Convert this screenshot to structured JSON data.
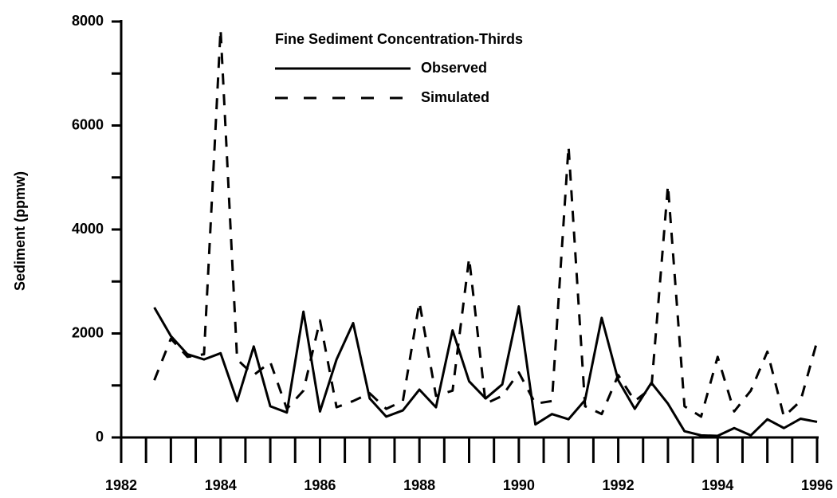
{
  "chart_data": {
    "type": "line",
    "ylabel": "Sediment (ppmw)",
    "legend_title": "Fine Sediment Concentration-Thirds",
    "x": [
      1982.667,
      1983,
      1983.333,
      1983.667,
      1984,
      1984.333,
      1984.667,
      1985,
      1985.333,
      1985.667,
      1986,
      1986.333,
      1986.667,
      1987,
      1987.333,
      1987.667,
      1988,
      1988.333,
      1988.667,
      1989,
      1989.333,
      1989.667,
      1990,
      1990.333,
      1990.667,
      1991,
      1991.333,
      1991.667,
      1992,
      1992.333,
      1992.667,
      1993,
      1993.333,
      1993.667,
      1994,
      1994.333,
      1994.667,
      1995,
      1995.333,
      1995.667,
      1996
    ],
    "series": [
      {
        "name": "Observed",
        "color": "#000000",
        "line_style": "solid",
        "values": [
          2500,
          1950,
          1600,
          1500,
          1620,
          700,
          1750,
          600,
          480,
          2420,
          500,
          1500,
          2200,
          750,
          400,
          520,
          920,
          580,
          2060,
          1080,
          750,
          1020,
          2520,
          250,
          450,
          350,
          720,
          2300,
          1100,
          550,
          1050,
          650,
          120,
          40,
          30,
          180,
          40,
          350,
          180,
          360,
          300
        ]
      },
      {
        "name": "Simulated",
        "color": "#000000",
        "line_style": "dashed",
        "values": [
          1100,
          1900,
          1550,
          1600,
          7850,
          1500,
          1200,
          1450,
          550,
          900,
          2250,
          580,
          700,
          850,
          550,
          700,
          2600,
          800,
          900,
          3450,
          650,
          800,
          1250,
          650,
          700,
          5600,
          600,
          450,
          1200,
          700,
          950,
          4850,
          600,
          400,
          1550,
          500,
          900,
          1650,
          400,
          700,
          1850
        ]
      }
    ],
    "xlim": [
      1982,
      1996
    ],
    "xticks": [
      1982,
      1984,
      1986,
      1988,
      1990,
      1992,
      1994,
      1996
    ],
    "xminor_ticks": [
      1982.5,
      1983,
      1983.5,
      1984.5,
      1985,
      1985.5,
      1986.5,
      1987,
      1987.5,
      1988.5,
      1989,
      1989.5,
      1990.5,
      1991,
      1991.5,
      1992.5,
      1993,
      1993.5,
      1994.5,
      1995,
      1995.5
    ],
    "ylim": [
      0,
      8000
    ],
    "yticks": [
      0,
      2000,
      4000,
      6000,
      8000
    ],
    "yminor_ticks": [
      1000,
      3000,
      5000,
      7000
    ],
    "grid": false
  }
}
